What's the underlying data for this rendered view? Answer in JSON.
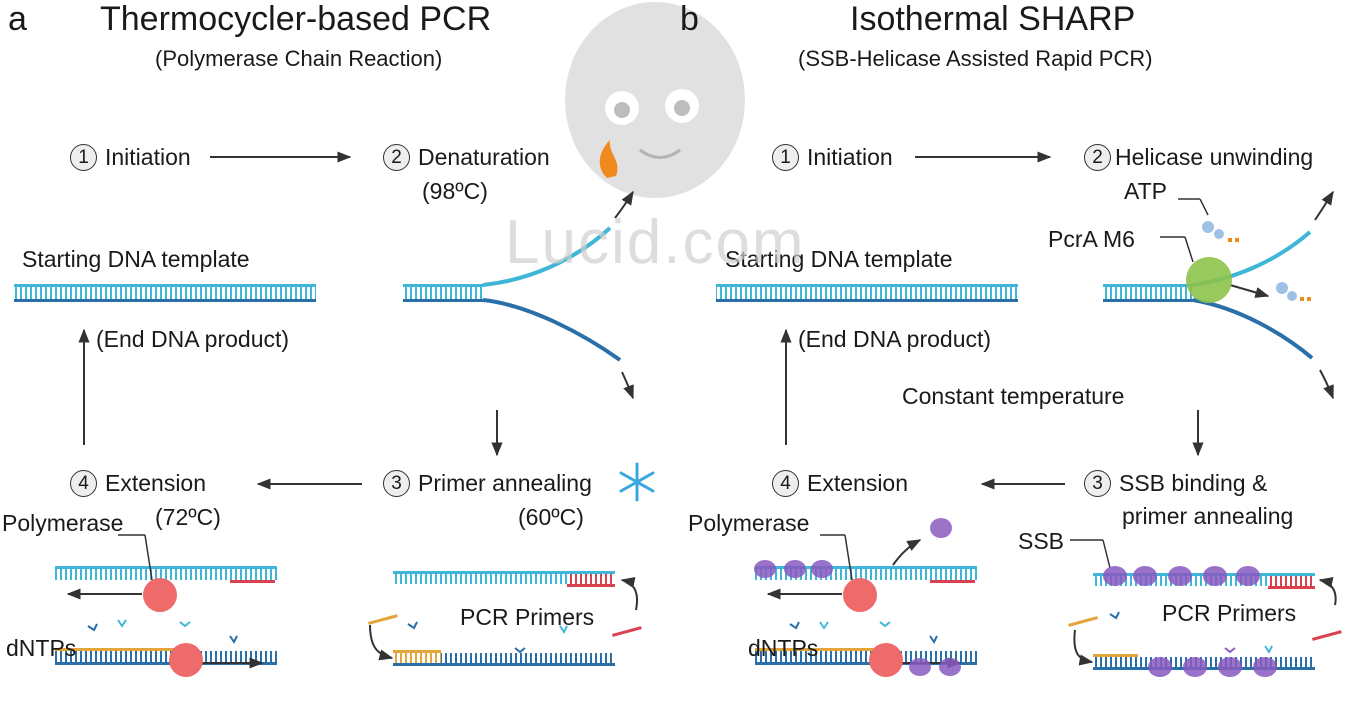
{
  "panel_a": {
    "letter": "a",
    "title": "Thermocycler-based PCR",
    "subtitle": "(Polymerase Chain Reaction)",
    "steps": [
      {
        "num": "1",
        "label": "Initiation"
      },
      {
        "num": "2",
        "label": "Denaturation"
      },
      {
        "num": "3",
        "label": "Primer annealing"
      },
      {
        "num": "4",
        "label": "Extension"
      }
    ],
    "denaturation_temp": "(98ºC)",
    "annealing_temp": "(60ºC)",
    "extension_temp": "(72ºC)",
    "starting_template": "Starting DNA template",
    "end_product": "(End DNA product)",
    "polymerase": "Polymerase",
    "dntps": "dNTPs",
    "pcr_primers": "PCR Primers"
  },
  "panel_b": {
    "letter": "b",
    "title": "Isothermal SHARP",
    "subtitle": "(SSB-Helicase Assisted Rapid PCR)",
    "steps": [
      {
        "num": "1",
        "label": "Initiation"
      },
      {
        "num": "2",
        "label": "Helicase unwinding"
      },
      {
        "num": "3",
        "label": "SSB binding &"
      },
      {
        "num": "4",
        "label": "Extension"
      }
    ],
    "step3_line2": "primer annealing",
    "atp": "ATP",
    "pcra": "PcrA M6",
    "starting_template": "Starting DNA template",
    "end_product": "(End DNA product)",
    "constant_temp": "Constant temperature",
    "polymerase": "Polymerase",
    "dntps": "dNTPs",
    "ssb": "SSB",
    "pcr_primers": "PCR Primers"
  },
  "watermark": "Lucid.com",
  "colors": {
    "dna_light": "#3fb6d8",
    "dna_dark": "#2a6fa8",
    "primer_red": "#d9414e",
    "primer_orange": "#e3a53a",
    "polymerase": "#ef6b6b",
    "ssb": "#8a5ac0",
    "helicase": "#8cc34a",
    "flame": "#f08a1e",
    "snow": "#3aa8e0"
  }
}
